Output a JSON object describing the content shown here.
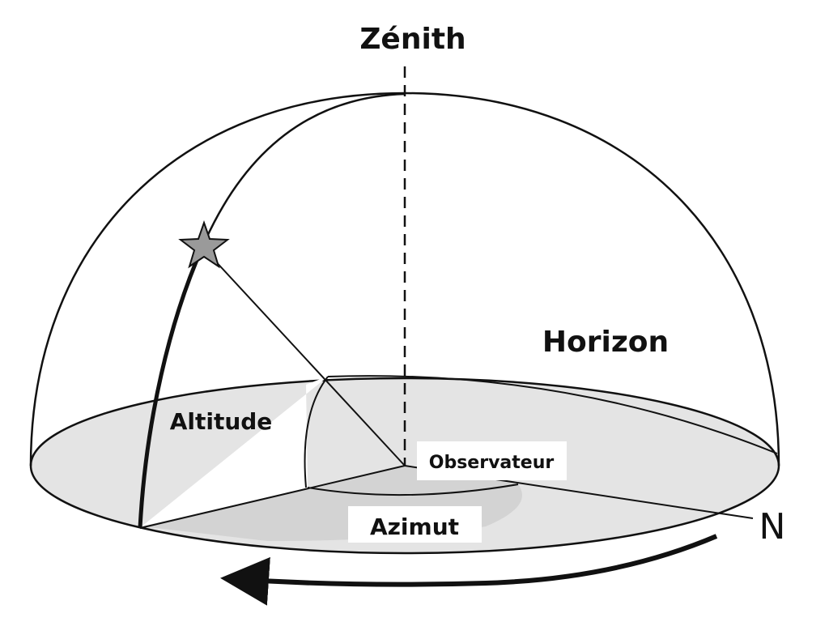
{
  "labels": {
    "zenith": "Zénith",
    "horizon": "Horizon",
    "altitude": "Altitude",
    "observer": "Observateur",
    "azimuth": "Azimut",
    "north": "N"
  },
  "colors": {
    "stroke": "#111111",
    "plane_fill": "#e4e4e4",
    "azimuth_sector_fill": "#cfcfcf",
    "star_fill": "#9a9a9a",
    "label_background": "#ffffff"
  },
  "icons": {
    "star": "star-icon",
    "direction_arrow": "arrow-left-icon"
  }
}
